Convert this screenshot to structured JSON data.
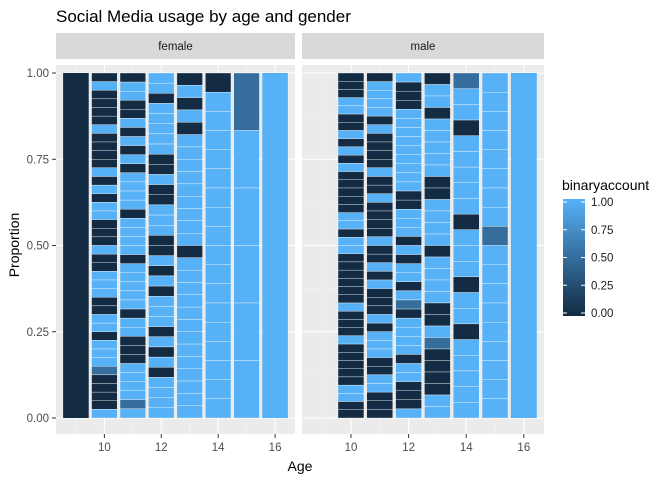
{
  "chart_data": {
    "type": "bar",
    "title": "Social Media usage by age and gender",
    "xlabel": "Age",
    "ylabel": "Proportion",
    "x_ticks": [
      10,
      12,
      14,
      16
    ],
    "y_ticks": [
      "0.00",
      "0.25",
      "0.50",
      "0.75",
      "1.00"
    ],
    "xlim": [
      8.3,
      16.7
    ],
    "ylim": [
      0,
      1
    ],
    "grid": true,
    "position": "fill",
    "fill_variable": "binaryaccount",
    "legend": {
      "title": "binaryaccount",
      "position": "right",
      "breaks": [
        "1.00",
        "0.75",
        "0.50",
        "0.25",
        "0.00"
      ],
      "low_color": "#132B43",
      "high_color": "#56B1F7"
    },
    "facets": [
      {
        "label": "female",
        "ages": [
          9,
          10,
          11,
          12,
          13,
          14,
          15,
          16
        ],
        "proportion_with_account": [
          0.0,
          0.45,
          0.58,
          0.66,
          0.8,
          0.89,
          0.97,
          1.0
        ],
        "approx_segments": [
          30,
          40,
          38,
          34,
          28,
          18,
          6,
          1
        ]
      },
      {
        "label": "male",
        "ages": [
          10,
          11,
          12,
          13,
          14,
          15,
          16
        ],
        "proportion_with_account": [
          0.35,
          0.55,
          0.6,
          0.7,
          0.84,
          0.87,
          1.0
        ],
        "approx_segments": [
          42,
          40,
          38,
          30,
          22,
          18,
          1
        ]
      }
    ]
  }
}
